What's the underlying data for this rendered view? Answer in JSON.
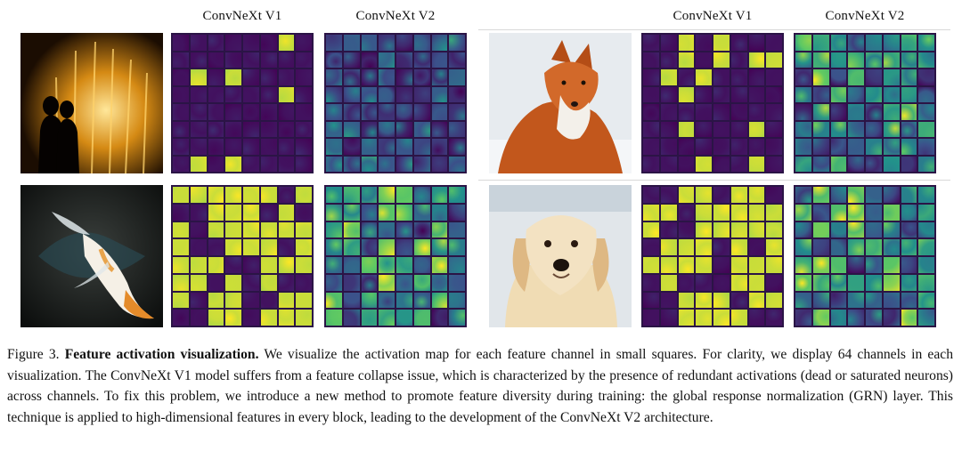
{
  "headers": {
    "left_v1": "ConvNeXt V1",
    "left_v2": "ConvNeXt V2",
    "right_v1": "ConvNeXt V1",
    "right_v2": "ConvNeXt V2"
  },
  "panels": [
    {
      "subject": "fountain-silhouette",
      "v1_activity": 0.08,
      "v2_activity": 0.22
    },
    {
      "subject": "fox",
      "v1_activity": 0.18,
      "v2_activity": 0.55
    },
    {
      "subject": "koi-fish",
      "v1_activity": 0.72,
      "v2_activity": 0.6
    },
    {
      "subject": "golden-retriever",
      "v1_activity": 0.68,
      "v2_activity": 0.62
    }
  ],
  "caption": {
    "prefix": "Figure 3. ",
    "title": "Feature activation visualization.",
    "body": " We visualize the activation map for each feature channel in small squares. For clarity, we display 64 channels in each visualization. The ConvNeXt V1 model suffers from a feature collapse issue, which is characterized by the presence of redundant activations (dead or saturated neurons) across channels. To fix this problem, we introduce a new method to promote feature diversity during training: the global response normalization (GRN) layer. This technique is applied to high-dimensional features in every block, leading to the development of the ConvNeXt V2 architecture."
  },
  "colors": {
    "viridis_low": "#440154",
    "viridis_mid": "#21908c",
    "viridis_high": "#fde725"
  }
}
